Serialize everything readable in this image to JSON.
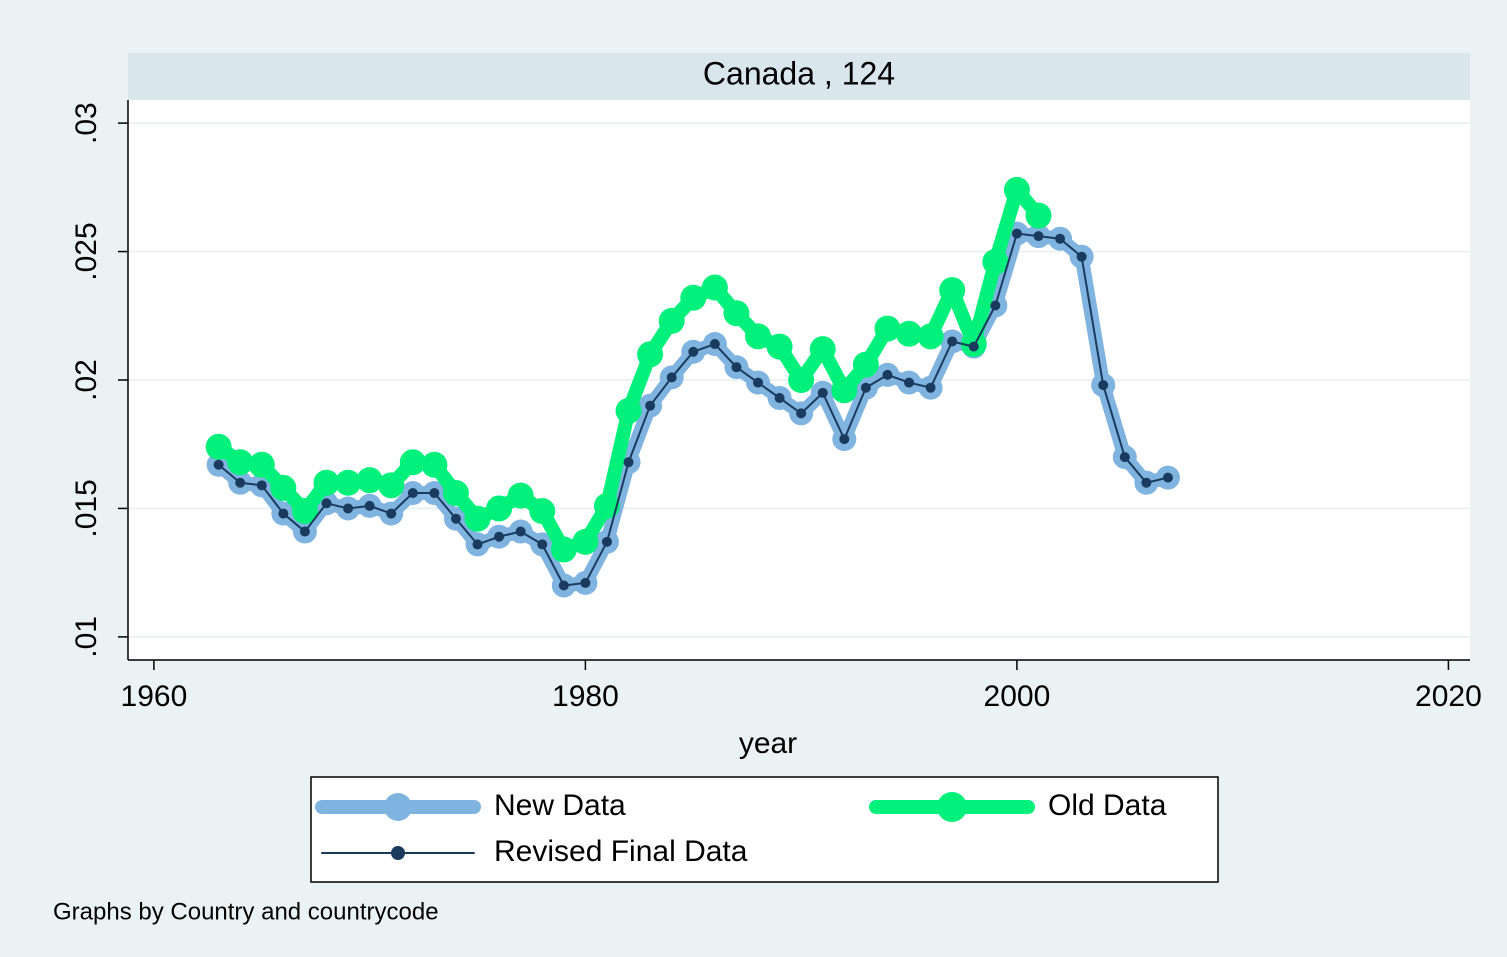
{
  "chart_data": {
    "type": "line",
    "title": "Canada , 124",
    "xlabel": "year",
    "note": "Graphs by Country and countrycode",
    "x": [
      1963,
      1964,
      1965,
      1966,
      1967,
      1968,
      1969,
      1970,
      1971,
      1972,
      1973,
      1974,
      1975,
      1976,
      1977,
      1978,
      1979,
      1980,
      1981,
      1982,
      1983,
      1984,
      1985,
      1986,
      1987,
      1988,
      1989,
      1990,
      1991,
      1992,
      1993,
      1994,
      1995,
      1996,
      1997,
      1998,
      1999,
      2000,
      2001,
      2002,
      2003,
      2004,
      2005,
      2006,
      2007
    ],
    "series": [
      {
        "name": "New Data",
        "color": "#7fb4e0",
        "values": [
          0.0167,
          0.016,
          0.0159,
          0.0148,
          0.0141,
          0.0152,
          0.015,
          0.0151,
          0.0148,
          0.0156,
          0.0156,
          0.0146,
          0.0136,
          0.0139,
          0.0141,
          0.0136,
          0.012,
          0.0121,
          0.0137,
          0.0168,
          0.019,
          0.0201,
          0.0211,
          0.0214,
          0.0205,
          0.0199,
          0.0193,
          0.0187,
          0.0195,
          0.0177,
          0.0197,
          0.0202,
          0.0199,
          0.0197,
          0.0215,
          0.0213,
          0.0229,
          0.0257,
          0.0256,
          0.0255,
          0.0248,
          0.0198,
          0.017,
          0.016,
          0.0162
        ]
      },
      {
        "name": "Old Data",
        "color": "#00f07c",
        "values": [
          0.0174,
          0.0168,
          0.0167,
          0.0158,
          0.0149,
          0.016,
          0.016,
          0.0161,
          0.0159,
          0.0168,
          0.0167,
          0.0156,
          0.0146,
          0.015,
          0.0155,
          0.0149,
          0.0134,
          0.0137,
          0.0151,
          0.0188,
          0.021,
          0.0223,
          0.0232,
          0.0236,
          0.0226,
          0.0217,
          0.0213,
          0.02,
          0.0212,
          0.0196,
          0.0206,
          0.022,
          0.0218,
          0.0217,
          0.0235,
          0.0214,
          0.0246,
          0.0274,
          0.0264,
          null,
          null,
          null,
          null,
          null,
          null
        ]
      },
      {
        "name": "Revised Final Data",
        "color": "#1a3b5e",
        "values": [
          0.0167,
          0.016,
          0.0159,
          0.0148,
          0.0141,
          0.0152,
          0.015,
          0.0151,
          0.0148,
          0.0156,
          0.0156,
          0.0146,
          0.0136,
          0.0139,
          0.0141,
          0.0136,
          0.012,
          0.0121,
          0.0137,
          0.0168,
          0.019,
          0.0201,
          0.0211,
          0.0214,
          0.0205,
          0.0199,
          0.0193,
          0.0187,
          0.0195,
          0.0177,
          0.0197,
          0.0202,
          0.0199,
          0.0197,
          0.0215,
          0.0213,
          0.0229,
          0.0257,
          0.0256,
          0.0255,
          0.0248,
          0.0198,
          0.017,
          0.016,
          0.0162
        ]
      }
    ],
    "xlim": [
      1958.8,
      2021
    ],
    "xticks": [
      1960,
      1980,
      2000,
      2020
    ],
    "ylim": [
      0.0091,
      0.0309
    ],
    "yticks": [
      {
        "value": 0.01,
        "label": ".01"
      },
      {
        "value": 0.015,
        "label": ".015"
      },
      {
        "value": 0.02,
        "label": ".02"
      },
      {
        "value": 0.025,
        "label": ".025"
      },
      {
        "value": 0.03,
        "label": ".03"
      }
    ],
    "grid": true
  }
}
